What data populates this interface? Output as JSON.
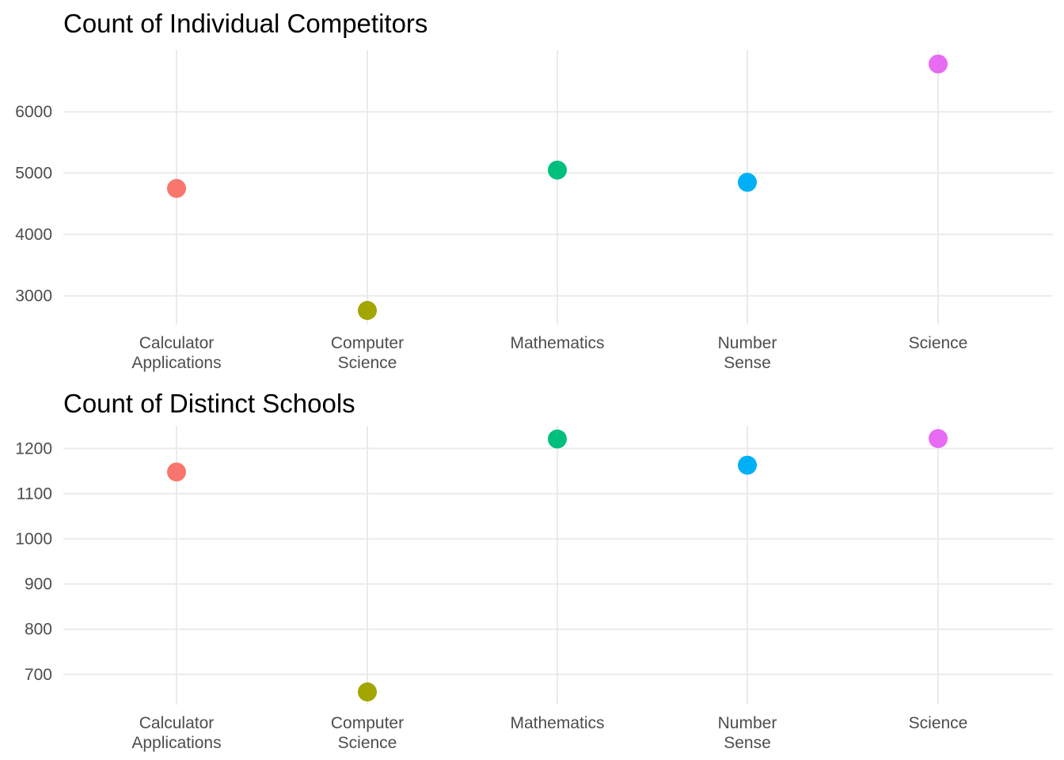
{
  "chart_data": [
    {
      "type": "scatter",
      "title": "Count of Individual Competitors",
      "xlabel": "",
      "ylabel": "",
      "categories": [
        [
          "Calculator",
          "Applications"
        ],
        [
          "Computer",
          "Science"
        ],
        [
          "Mathematics"
        ],
        [
          "Number",
          "Sense"
        ],
        [
          "Science"
        ]
      ],
      "values": [
        4750,
        2760,
        5050,
        4850,
        6780
      ],
      "yticks": [
        3000,
        4000,
        5000,
        6000
      ],
      "ylim": [
        2530,
        7010
      ],
      "colors": [
        "#F8766D",
        "#A3A500",
        "#00BF7D",
        "#00B0F6",
        "#E76BF3"
      ],
      "grid": true,
      "legend": "none"
    },
    {
      "type": "scatter",
      "title": "Count of Distinct Schools",
      "xlabel": "",
      "ylabel": "",
      "categories": [
        [
          "Calculator",
          "Applications"
        ],
        [
          "Computer",
          "Science"
        ],
        [
          "Mathematics"
        ],
        [
          "Number",
          "Sense"
        ],
        [
          "Science"
        ]
      ],
      "values": [
        1148,
        661,
        1221,
        1163,
        1222
      ],
      "yticks": [
        700,
        800,
        900,
        1000,
        1100,
        1200
      ],
      "ylim": [
        633,
        1250
      ],
      "colors": [
        "#F8766D",
        "#A3A500",
        "#00BF7D",
        "#00B0F6",
        "#E76BF3"
      ],
      "grid": true,
      "legend": "none"
    }
  ]
}
